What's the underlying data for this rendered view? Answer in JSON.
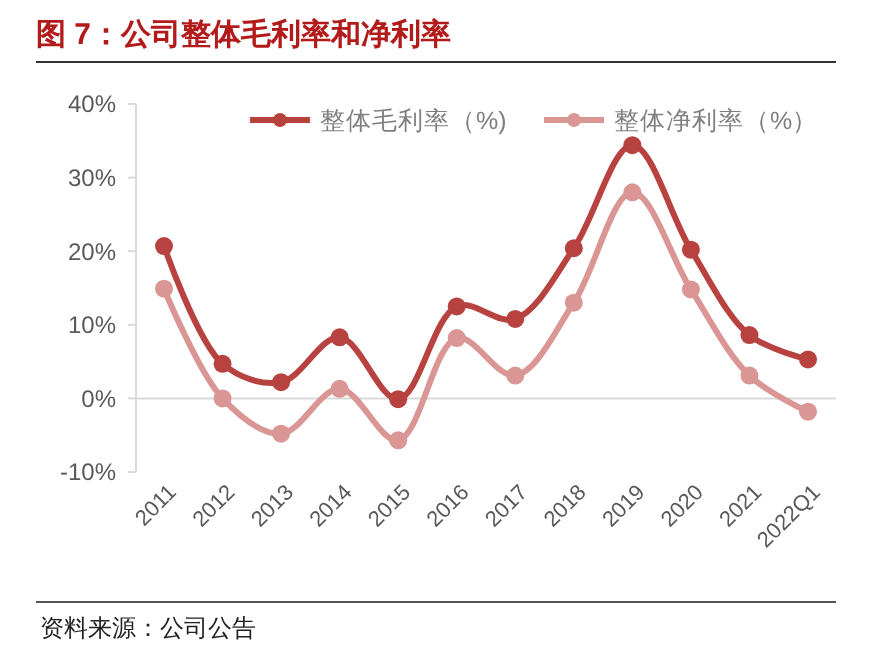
{
  "chart_data": {
    "type": "line",
    "title": "图 7：公司整体毛利率和净利率",
    "categories": [
      "2011",
      "2012",
      "2013",
      "2014",
      "2015",
      "2016",
      "2017",
      "2018",
      "2019",
      "2020",
      "2021",
      "2022Q1"
    ],
    "series": [
      {
        "name": "整体毛利率（%)",
        "color": "#b8423f",
        "values": [
          20.7,
          4.7,
          2.2,
          8.3,
          -0.1,
          12.5,
          10.8,
          20.4,
          34.4,
          20.2,
          8.6,
          5.3
        ]
      },
      {
        "name": "整体净利率（%）",
        "color": "#d99694",
        "values": [
          14.9,
          0,
          -4.8,
          1.3,
          -5.7,
          8.2,
          3.1,
          13.0,
          28.0,
          14.8,
          3.1,
          -1.8
        ]
      }
    ],
    "ylim": [
      -10,
      40
    ],
    "yticks": [
      {
        "value": -10,
        "label": "-10%"
      },
      {
        "value": 0,
        "label": "0%"
      },
      {
        "value": 10,
        "label": "10%"
      },
      {
        "value": 20,
        "label": "20%"
      },
      {
        "value": 30,
        "label": "30%"
      },
      {
        "value": 40,
        "label": "40%"
      }
    ],
    "marker": "circle",
    "line_style": "solid",
    "legend": "top",
    "annotations": [
      "资料来源：公司公告"
    ]
  }
}
